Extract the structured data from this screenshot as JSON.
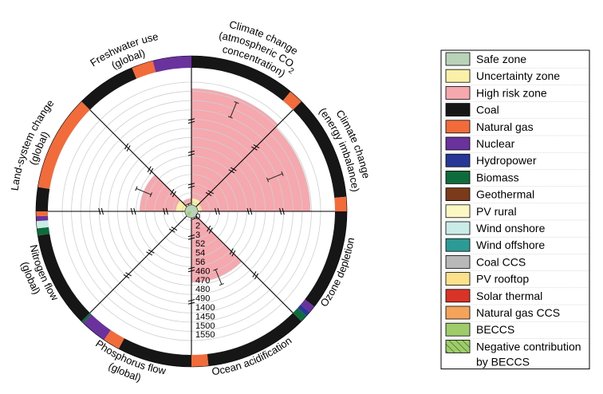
{
  "chart_data": {
    "type": "radar",
    "title": "",
    "boundaries": [
      {
        "label": "Climate change (atmospheric CO2 concentration)",
        "lines": [
          "Climate change",
          "(atmospheric CO",
          "concentration)"
        ],
        "subscript": "2"
      },
      {
        "label": "Climate change (energy imbalance)",
        "lines": [
          "Climate change",
          "(energy imbalance)"
        ]
      },
      {
        "label": "Ozone depletion",
        "lines": [
          "Ozone depletion"
        ]
      },
      {
        "label": "Ocean acidification",
        "lines": [
          "Ocean acidification"
        ]
      },
      {
        "label": "Phosphorus flow (global)",
        "lines": [
          "Phosphorus flow",
          "(global)"
        ]
      },
      {
        "label": "Nitrogen flow (global)",
        "lines": [
          "Nitrogen flow",
          "(global)"
        ]
      },
      {
        "label": "Land-system change (global)",
        "lines": [
          "Land-system change",
          "(global)"
        ]
      },
      {
        "label": "Freshwater use (global)",
        "lines": [
          "Freshwater use",
          "(global)"
        ]
      }
    ],
    "radial_ticks": [
      "0",
      "2",
      "3",
      "52",
      "54",
      "56",
      "460",
      "470",
      "480",
      "490",
      "1400",
      "1450",
      "1500",
      "1550"
    ],
    "ring_count": 14,
    "high_risk_extent": [
      0.95,
      0.92,
      0.0,
      0.55,
      0.0,
      0.0,
      0.4,
      0.1
    ],
    "uncertainty_extent": [
      0.1,
      0.08,
      0.05,
      0.05,
      0.05,
      0.05,
      0.12,
      0.06
    ],
    "safe_extent": [
      0.05,
      0.05,
      0.05,
      0.05,
      0.05,
      0.05,
      0.05,
      0.05
    ],
    "error_bar_position": [
      0.85,
      0.7,
      null,
      0.55,
      null,
      null,
      0.4,
      0.0
    ],
    "source_shares": [
      [
        {
          "source": "Coal",
          "share": 0.88
        },
        {
          "source": "Natural gas",
          "share": 0.12
        }
      ],
      [
        {
          "source": "Coal",
          "share": 0.88
        },
        {
          "source": "Natural gas",
          "share": 0.12
        }
      ],
      [
        {
          "source": "Coal",
          "share": 0.84
        },
        {
          "source": "Nuclear",
          "share": 0.06
        },
        {
          "source": "Hydropower",
          "share": 0.04
        },
        {
          "source": "Biomass",
          "share": 0.06
        }
      ],
      [
        {
          "source": "Coal",
          "share": 0.86
        },
        {
          "source": "Natural gas",
          "share": 0.14
        }
      ],
      [
        {
          "source": "Coal",
          "share": 0.62
        },
        {
          "source": "Natural gas",
          "share": 0.14
        },
        {
          "source": "Nuclear",
          "share": 0.22
        },
        {
          "source": "Biomass",
          "share": 0.02
        }
      ],
      [
        {
          "source": "Coal",
          "share": 0.8
        },
        {
          "source": "Biomass",
          "share": 0.06
        },
        {
          "source": "Wind onshore",
          "share": 0.06
        },
        {
          "source": "Nuclear",
          "share": 0.04
        },
        {
          "source": "Natural gas",
          "share": 0.04
        }
      ],
      [
        {
          "source": "Coal",
          "share": 0.2
        },
        {
          "source": "Natural gas",
          "share": 0.8
        }
      ],
      [
        {
          "source": "Coal",
          "share": 0.5
        },
        {
          "source": "Natural gas",
          "share": 0.18
        },
        {
          "source": "Nuclear",
          "share": 0.32
        }
      ]
    ],
    "legend": {
      "placement": "right",
      "entries": [
        {
          "name": "Safe zone",
          "color": "#b9d3b9"
        },
        {
          "name": "Uncertainty zone",
          "color": "#fbf0a8"
        },
        {
          "name": "High risk zone",
          "color": "#f5a8ae"
        },
        {
          "name": "Coal",
          "color": "#161616"
        },
        {
          "name": "Natural gas",
          "color": "#f26b3a"
        },
        {
          "name": "Nuclear",
          "color": "#6a329c"
        },
        {
          "name": "Hydropower",
          "color": "#273797"
        },
        {
          "name": "Biomass",
          "color": "#0e6b3c"
        },
        {
          "name": "Geothermal",
          "color": "#7b3b1a"
        },
        {
          "name": "PV rural",
          "color": "#fdf7c3"
        },
        {
          "name": "Wind onshore",
          "color": "#c9ece6"
        },
        {
          "name": "Wind offshore",
          "color": "#2d9b95"
        },
        {
          "name": "Coal CCS",
          "color": "#b8b8b8"
        },
        {
          "name": "PV rooftop",
          "color": "#fde08a"
        },
        {
          "name": "Solar thermal",
          "color": "#d93227"
        },
        {
          "name": "Natural gas CCS",
          "color": "#f5a25b"
        },
        {
          "name": "BECCS",
          "color": "#9fcc6b"
        },
        {
          "name": "Negative contribution",
          "color": "#9fcc6b",
          "hatched": true,
          "continuation": "by BECCS"
        }
      ]
    }
  }
}
